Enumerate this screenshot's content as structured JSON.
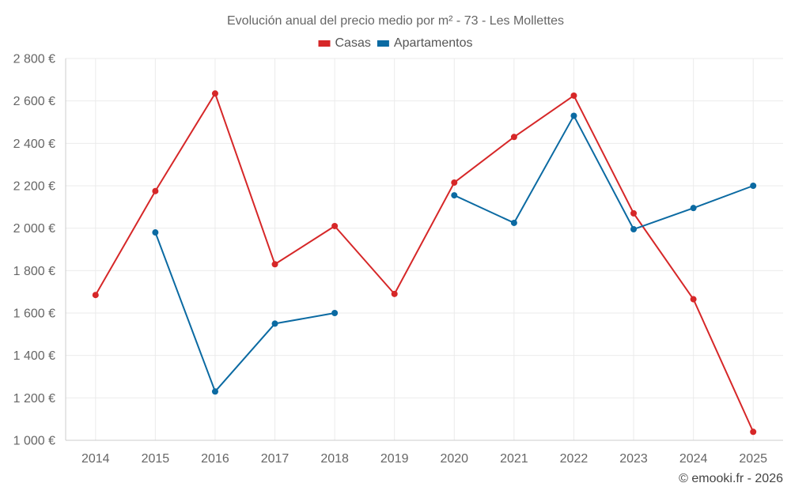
{
  "chart_data": {
    "type": "line",
    "title": "Evolución anual del precio medio por m² - 73 - Les Mollettes",
    "xlabel": "",
    "ylabel": "",
    "categories": [
      "2014",
      "2015",
      "2016",
      "2017",
      "2018",
      "2019",
      "2020",
      "2021",
      "2022",
      "2023",
      "2024",
      "2025"
    ],
    "ylim": [
      1000,
      2800
    ],
    "y_ticks": [
      1000,
      1200,
      1400,
      1600,
      1800,
      2000,
      2200,
      2400,
      2600,
      2800
    ],
    "y_tick_labels": [
      "1 000 €",
      "1 200 €",
      "1 400 €",
      "1 600 €",
      "1 800 €",
      "2 000 €",
      "2 200 €",
      "2 400 €",
      "2 600 €",
      "2 800 €"
    ],
    "grid": true,
    "legend_position": "top-center",
    "series": [
      {
        "name": "Casas",
        "color": "#d62728",
        "values": [
          1685,
          2175,
          2635,
          1830,
          2010,
          1690,
          2215,
          2430,
          2625,
          2070,
          1665,
          1040
        ]
      },
      {
        "name": "Apartamentos",
        "color": "#0b6aa2",
        "values": [
          null,
          1980,
          1230,
          1550,
          1600,
          null,
          2155,
          2025,
          2530,
          1995,
          2095,
          2200
        ]
      }
    ]
  },
  "credit": "© emooki.fr - 2026"
}
